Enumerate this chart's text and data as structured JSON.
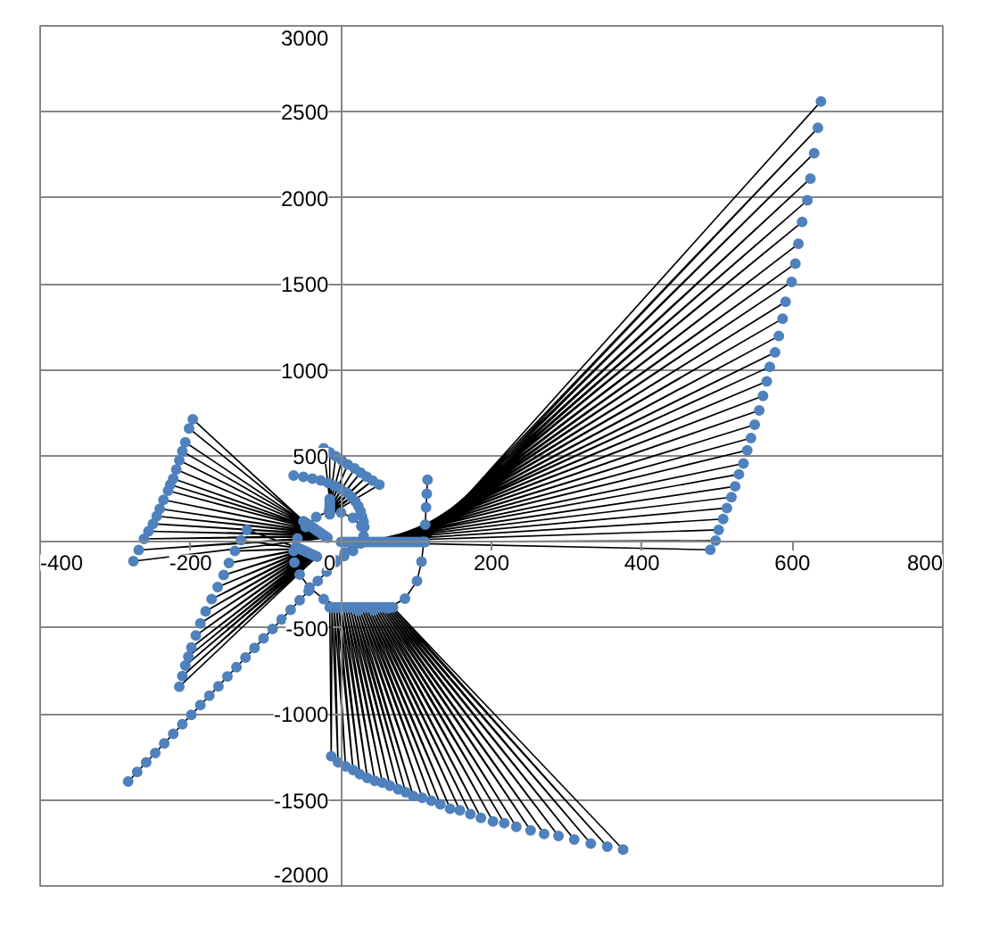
{
  "chart_data": {
    "type": "line",
    "xlim": [
      -400,
      800
    ],
    "ylim": [
      -2000,
      3000
    ],
    "xticks": [
      -400,
      -200,
      0,
      200,
      400,
      600,
      800
    ],
    "yticks": [
      -2000,
      -1500,
      -1000,
      -500,
      {
        "value": 0,
        "label": null
      },
      500,
      1000,
      1500,
      2000,
      2500,
      3000
    ],
    "grid": "y",
    "marker": "circle",
    "line_style": "solid",
    "series": [
      {
        "color": "#4f81bd",
        "x": [
          0,
          491,
          4,
          498,
          8,
          502,
          12,
          508,
          16,
          513,
          20,
          519,
          24,
          524,
          28,
          529,
          32,
          535,
          36,
          540,
          40,
          545,
          44,
          550,
          48,
          556,
          52,
          561,
          56,
          566,
          60,
          570,
          64,
          577,
          68,
          582,
          72,
          587,
          76,
          591,
          80,
          599,
          84,
          604,
          88,
          608,
          92,
          613,
          96,
          620,
          100,
          624,
          104,
          629,
          108,
          634,
          112,
          638,
          null,
          -15,
          -13,
          -12,
          -4,
          -9,
          6,
          -6,
          16,
          -3,
          25,
          0,
          35,
          3,
          45,
          6,
          55,
          9,
          65,
          12,
          76,
          15,
          86,
          18,
          96,
          21,
          108,
          24,
          120,
          27,
          132,
          30,
          145,
          33,
          158,
          36,
          172,
          39,
          186,
          42,
          202,
          45,
          217,
          48,
          233,
          51,
          252,
          54,
          270,
          57,
          289,
          60,
          310,
          63,
          332,
          66,
          354,
          69,
          375,
          null,
          -50,
          -197,
          -48,
          -202,
          -46,
          -207,
          -44,
          -211,
          -42,
          -215,
          -40,
          -219,
          -38,
          -223,
          -36,
          -227,
          -34,
          -230,
          -32,
          -236,
          -30,
          -241,
          -28,
          -245,
          -26,
          -250,
          -24,
          -256,
          -22,
          -262,
          -20,
          -269,
          -18,
          -276,
          null,
          -60,
          -125,
          -58,
          -133,
          -56,
          -141,
          -54,
          -149,
          -52,
          -156,
          -50,
          -164,
          -48,
          -172,
          -46,
          -180,
          -44,
          -187,
          -42,
          -193,
          -40,
          -199,
          -38,
          -203,
          -36,
          -207,
          -34,
          -211,
          -32,
          -215,
          null,
          -15,
          -23,
          -15,
          -15,
          -15,
          -7,
          -15,
          1,
          -15,
          9,
          -15,
          18,
          -15,
          26,
          -15,
          34,
          -15,
          42,
          -15,
          51,
          null,
          -63,
          -50,
          -38,
          -27,
          -17,
          -8,
          0,
          8,
          14,
          19,
          23,
          26,
          28,
          30,
          31,
          null,
          -8,
          4,
          16,
          26,
          30,
          27,
          16,
          0,
          -16,
          -33,
          -47,
          -58,
          -63,
          -62,
          -55,
          -42,
          -23,
          0,
          23,
          43,
          62,
          85,
          101,
          107,
          110,
          112,
          113,
          114,
          115,
          null,
          -283,
          -271,
          -259,
          -247,
          -235,
          -223,
          -211,
          -199,
          -187,
          -175,
          -163,
          -151,
          -139,
          -127,
          -115,
          -103,
          -91,
          -79,
          -67,
          -55,
          -43,
          -31,
          -19,
          -7,
          5,
          17
        ],
        "values": [
          0,
          -46,
          0,
          7,
          0,
          70,
          0,
          133,
          0,
          197,
          0,
          260,
          0,
          323,
          0,
          393,
          0,
          456,
          0,
          533,
          0,
          604,
          0,
          681,
          0,
          765,
          0,
          849,
          0,
          933,
          0,
          1018,
          0,
          1102,
          0,
          1197,
          0,
          1298,
          0,
          1396,
          0,
          1512,
          0,
          1618,
          0,
          1733,
          0,
          1860,
          0,
          1986,
          0,
          2112,
          0,
          2260,
          0,
          2407,
          0,
          2561,
          null,
          -380,
          -1246,
          -380,
          -1281,
          -380,
          -1305,
          -380,
          -1326,
          -380,
          -1351,
          -380,
          -1372,
          -380,
          -1389,
          -380,
          -1400,
          -380,
          -1418,
          -380,
          -1439,
          -380,
          -1456,
          -380,
          -1477,
          -380,
          -1488,
          -380,
          -1505,
          -380,
          -1526,
          -380,
          -1551,
          -380,
          -1561,
          -380,
          -1582,
          -380,
          -1604,
          -380,
          -1625,
          -380,
          -1635,
          -380,
          -1656,
          -380,
          -1677,
          -380,
          -1698,
          -380,
          -1709,
          -380,
          -1730,
          -380,
          -1754,
          -380,
          -1772,
          -380,
          -1789,
          null,
          120,
          713,
          114,
          660,
          108,
          579,
          102,
          527,
          96,
          474,
          90,
          421,
          84,
          368,
          78,
          333,
          72,
          298,
          66,
          245,
          60,
          193,
          54,
          150,
          48,
          105,
          42,
          62,
          36,
          18,
          30,
          -47,
          24,
          -112,
          null,
          -30,
          70,
          -34,
          10,
          -38,
          -53,
          -42,
          -123,
          -46,
          -193,
          -50,
          -263,
          -54,
          -333,
          -58,
          -404,
          -62,
          -474,
          -66,
          -544,
          -70,
          -614,
          -74,
          -667,
          -78,
          -719,
          -82,
          -780,
          -86,
          -842,
          null,
          250,
          544,
          240,
          521,
          230,
          497,
          220,
          474,
          210,
          450,
          200,
          427,
          190,
          403,
          180,
          380,
          170,
          356,
          160,
          333,
          null,
          386,
          378,
          368,
          357,
          343,
          326,
          307,
          286,
          262,
          236,
          208,
          178,
          147,
          117,
          87,
          null,
          -105,
          -82,
          -53,
          -10,
          35,
          90,
          140,
          170,
          179,
          145,
          87,
          20,
          -53,
          -120,
          -190,
          -265,
          -333,
          -380,
          -400,
          -398,
          -386,
          -330,
          -228,
          -115,
          0,
          100,
          200,
          280,
          361,
          null,
          -1393,
          -1338,
          -1282,
          -1227,
          -1171,
          -1116,
          -1060,
          -1005,
          -949,
          -894,
          -839,
          -783,
          -728,
          -672,
          -617,
          -561,
          -506,
          -450,
          -395,
          -339,
          -284,
          -228,
          -173,
          -117,
          -62,
          -6
        ]
      }
    ]
  }
}
